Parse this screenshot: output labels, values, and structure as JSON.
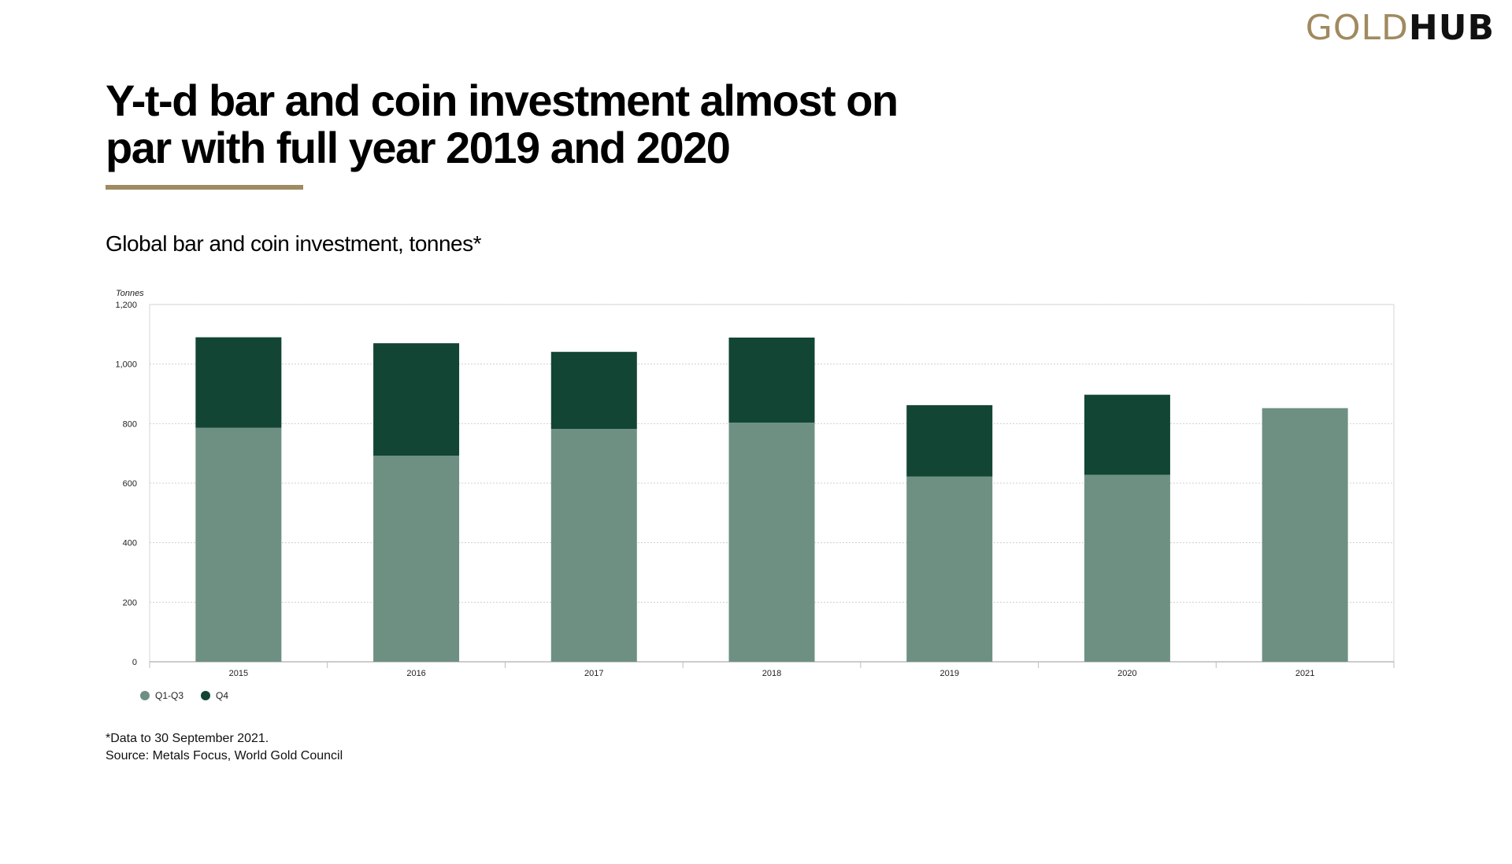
{
  "logo": {
    "gold": "GOLD",
    "hub": "HUB"
  },
  "headline": {
    "line1": "Y-t-d bar and coin investment almost on",
    "line2": "par with full year 2019 and 2020"
  },
  "colors": {
    "accent": "#9E8B62",
    "q1q3": "#6E9082",
    "q4": "#124533"
  },
  "chart_data": {
    "type": "bar",
    "stacked": true,
    "title": "Global bar and coin investment, tonnes*",
    "ylabel": "Tonnes",
    "xlabel": "",
    "ylim": [
      0,
      1200
    ],
    "yticks": [
      0,
      200,
      400,
      600,
      800,
      1000,
      1200
    ],
    "ytick_labels": [
      "0",
      "200",
      "400",
      "600",
      "800",
      "1,000",
      "1,200"
    ],
    "grid": true,
    "legend_position": "bottom-left",
    "categories": [
      "2015",
      "2016",
      "2017",
      "2018",
      "2019",
      "2020",
      "2021"
    ],
    "series": [
      {
        "name": "Q1-Q3",
        "color": "#6E9082",
        "values": [
          786,
          692,
          782,
          803,
          622,
          628,
          852
        ]
      },
      {
        "name": "Q4",
        "color": "#124533",
        "values": [
          304,
          378,
          259,
          286,
          240,
          269,
          0
        ]
      }
    ]
  },
  "footnotes": {
    "note": "*Data to 30 September 2021.",
    "source": "Source: Metals Focus, World Gold Council"
  }
}
